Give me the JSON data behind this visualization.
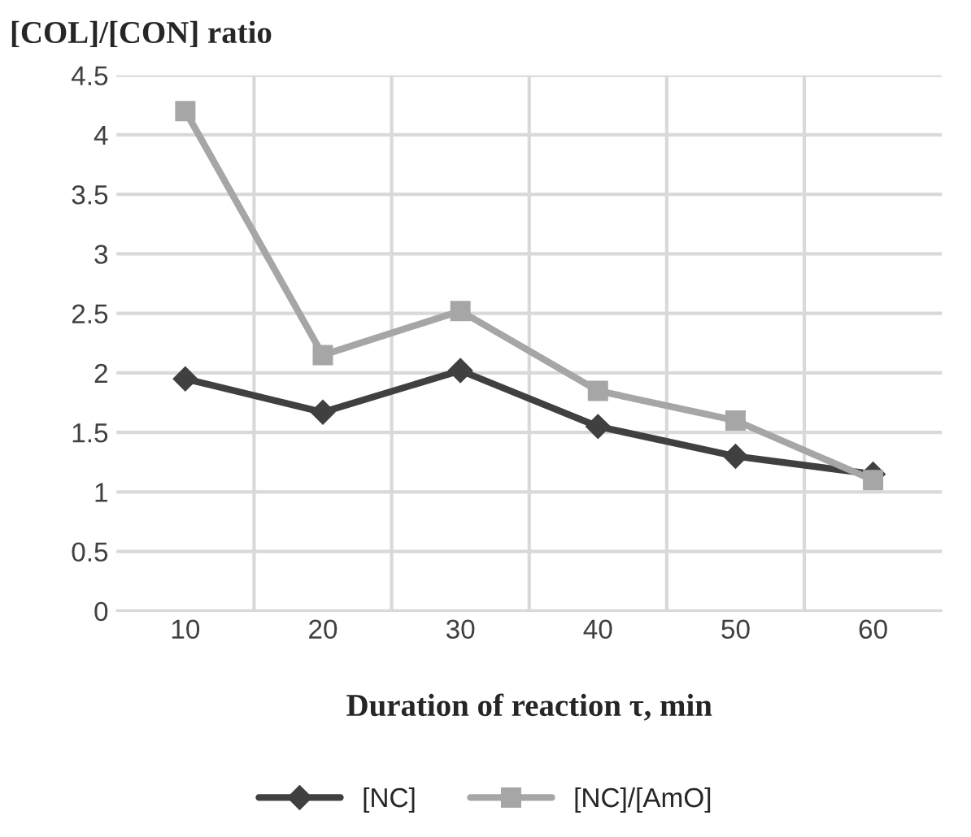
{
  "chart_data": {
    "type": "line",
    "ylabel": "[COL]/[CON] ratio",
    "xlabel": "Duration of reaction τ, min",
    "categories": [
      "10",
      "20",
      "30",
      "40",
      "50",
      "60"
    ],
    "series": [
      {
        "name": "[NC]",
        "color": "#404040",
        "values": [
          1.95,
          1.67,
          2.02,
          1.55,
          1.3,
          1.15
        ],
        "marker": "diamond"
      },
      {
        "name": "[NC]/[AmO]",
        "color": "#a6a6a6",
        "values": [
          4.2,
          2.15,
          2.52,
          1.85,
          1.6,
          1.1
        ],
        "marker": "square"
      }
    ],
    "ylim": [
      0,
      4.5
    ],
    "yticks": [
      0,
      0.5,
      1,
      1.5,
      2,
      2.5,
      3,
      3.5,
      4,
      4.5
    ],
    "grid": true,
    "legend": "bottom"
  }
}
